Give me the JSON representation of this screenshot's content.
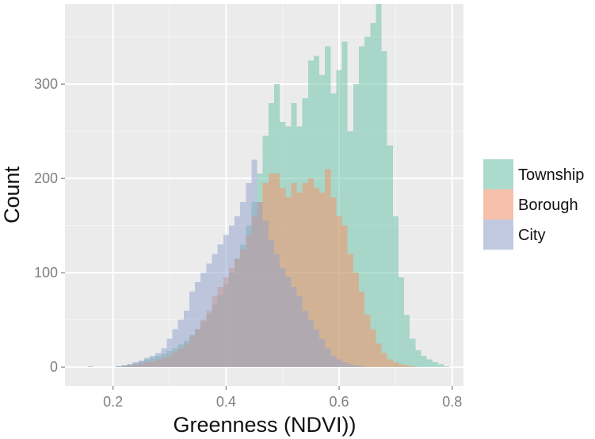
{
  "chart_data": {
    "type": "histogram",
    "xlabel": "Greenness (NDVI))",
    "ylabel": "Count",
    "xlim": [
      0.115,
      0.82
    ],
    "ylim": [
      -20,
      385
    ],
    "bin_width": 0.01,
    "x_ticks": [
      0.2,
      0.4,
      0.6,
      0.8
    ],
    "x_tick_labels": [
      "0.2",
      "0.4",
      "0.6",
      "0.8"
    ],
    "y_ticks": [
      0,
      100,
      200,
      300
    ],
    "y_tick_labels": [
      "0",
      "100",
      "200",
      "300"
    ],
    "grid": true,
    "legend_position": "right",
    "panel_background": "#EBEBEB",
    "grid_color": "#FFFFFF",
    "series": [
      {
        "name": "Township",
        "color": "#66C2A5",
        "x": [
          0.16,
          0.17,
          0.18,
          0.19,
          0.2,
          0.21,
          0.22,
          0.23,
          0.24,
          0.25,
          0.26,
          0.27,
          0.28,
          0.29,
          0.3,
          0.31,
          0.32,
          0.33,
          0.34,
          0.35,
          0.36,
          0.37,
          0.38,
          0.39,
          0.4,
          0.41,
          0.42,
          0.43,
          0.44,
          0.45,
          0.46,
          0.47,
          0.48,
          0.49,
          0.5,
          0.51,
          0.52,
          0.53,
          0.54,
          0.55,
          0.56,
          0.57,
          0.58,
          0.59,
          0.6,
          0.61,
          0.62,
          0.63,
          0.64,
          0.65,
          0.66,
          0.67,
          0.68,
          0.69,
          0.7,
          0.71,
          0.72,
          0.73,
          0.74,
          0.75,
          0.76,
          0.77,
          0.78,
          0.79
        ],
        "values": [
          0,
          0,
          0,
          0,
          0,
          1,
          2,
          3,
          4,
          6,
          8,
          10,
          12,
          14,
          17,
          20,
          24,
          28,
          34,
          40,
          48,
          56,
          66,
          76,
          88,
          100,
          115,
          130,
          150,
          175,
          205,
          245,
          280,
          300,
          260,
          255,
          280,
          255,
          285,
          325,
          330,
          310,
          340,
          290,
          315,
          345,
          250,
          300,
          340,
          350,
          365,
          385,
          335,
          235,
          160,
          95,
          55,
          30,
          18,
          12,
          8,
          5,
          3,
          1
        ]
      },
      {
        "name": "Borough",
        "color": "#FC8D62",
        "x": [
          0.16,
          0.17,
          0.18,
          0.19,
          0.2,
          0.21,
          0.22,
          0.23,
          0.24,
          0.25,
          0.26,
          0.27,
          0.28,
          0.29,
          0.3,
          0.31,
          0.32,
          0.33,
          0.34,
          0.35,
          0.36,
          0.37,
          0.38,
          0.39,
          0.4,
          0.41,
          0.42,
          0.43,
          0.44,
          0.45,
          0.46,
          0.47,
          0.48,
          0.49,
          0.5,
          0.51,
          0.52,
          0.53,
          0.54,
          0.55,
          0.56,
          0.57,
          0.58,
          0.59,
          0.6,
          0.61,
          0.62,
          0.63,
          0.64,
          0.65,
          0.66,
          0.67,
          0.68,
          0.69,
          0.7,
          0.71,
          0.72,
          0.73,
          0.74,
          0.75,
          0.76,
          0.77,
          0.78,
          0.79
        ],
        "values": [
          0,
          0,
          0,
          0,
          0,
          0,
          1,
          2,
          3,
          4,
          5,
          6,
          8,
          10,
          12,
          16,
          20,
          25,
          32,
          40,
          50,
          60,
          75,
          85,
          95,
          105,
          115,
          125,
          140,
          160,
          175,
          195,
          205,
          205,
          190,
          180,
          195,
          185,
          195,
          200,
          190,
          185,
          210,
          180,
          160,
          150,
          120,
          100,
          80,
          55,
          40,
          25,
          15,
          8,
          5,
          3,
          2,
          1,
          0,
          0,
          0,
          0,
          0,
          0
        ]
      },
      {
        "name": "City",
        "color": "#8DA0CB",
        "x": [
          0.16,
          0.17,
          0.18,
          0.19,
          0.2,
          0.21,
          0.22,
          0.23,
          0.24,
          0.25,
          0.26,
          0.27,
          0.28,
          0.29,
          0.3,
          0.31,
          0.32,
          0.33,
          0.34,
          0.35,
          0.36,
          0.37,
          0.38,
          0.39,
          0.4,
          0.41,
          0.42,
          0.43,
          0.44,
          0.45,
          0.46,
          0.47,
          0.48,
          0.49,
          0.5,
          0.51,
          0.52,
          0.53,
          0.54,
          0.55,
          0.56,
          0.57,
          0.58,
          0.59,
          0.6,
          0.61,
          0.62,
          0.63,
          0.64,
          0.65,
          0.66,
          0.67,
          0.68,
          0.69,
          0.7,
          0.71,
          0.72,
          0.73,
          0.74,
          0.75,
          0.76,
          0.77,
          0.78,
          0.79
        ],
        "values": [
          1,
          0,
          0,
          0,
          0,
          1,
          2,
          3,
          5,
          7,
          10,
          12,
          15,
          20,
          30,
          40,
          50,
          60,
          80,
          90,
          100,
          110,
          120,
          130,
          140,
          150,
          160,
          175,
          195,
          220,
          175,
          155,
          135,
          120,
          105,
          95,
          85,
          75,
          60,
          50,
          40,
          30,
          20,
          12,
          8,
          5,
          3,
          2,
          1,
          0,
          0,
          0,
          0,
          0,
          0,
          0,
          0,
          0,
          0,
          0,
          0,
          0,
          0,
          0
        ]
      }
    ]
  }
}
